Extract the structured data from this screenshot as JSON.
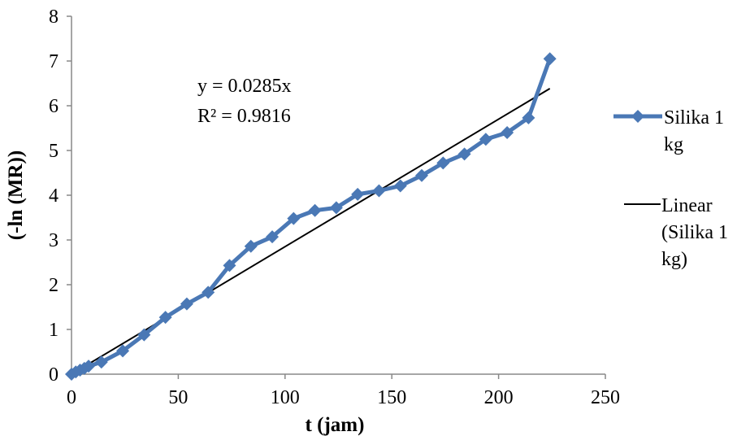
{
  "chart_data": {
    "type": "line",
    "xlabel": "t (jam)",
    "ylabel": "(-ln (MR))",
    "xlim": [
      0,
      250
    ],
    "ylim": [
      0,
      8
    ],
    "xticks": [
      "0",
      "50",
      "100",
      "150",
      "200",
      "250"
    ],
    "yticks": [
      "0",
      "1",
      "2",
      "3",
      "4",
      "5",
      "6",
      "7",
      "8"
    ],
    "grid": false,
    "legend_position": "right",
    "series": [
      {
        "name": "Silika 1 kg",
        "legend_lines": [
          "Silika 1",
          "kg"
        ],
        "color": "#4a78b5",
        "marker": "diamond",
        "x": [
          0,
          2,
          4,
          6,
          8,
          14,
          24,
          34,
          44,
          54,
          64,
          74,
          84,
          94,
          104,
          114,
          124,
          134,
          144,
          154,
          164,
          174,
          184,
          194,
          204,
          214,
          224
        ],
        "y": [
          0,
          0.05,
          0.09,
          0.13,
          0.18,
          0.27,
          0.52,
          0.88,
          1.27,
          1.57,
          1.83,
          2.43,
          2.86,
          3.07,
          3.48,
          3.66,
          3.72,
          4.02,
          4.1,
          4.21,
          4.44,
          4.72,
          4.92,
          5.25,
          5.4,
          5.73,
          7.05
        ]
      },
      {
        "name": "Linear (Silika 1 kg)",
        "legend_lines": [
          "Linear",
          "(Silika 1",
          "kg)"
        ],
        "color": "#000000",
        "type": "trendline",
        "slope": 0.0285,
        "x_range": [
          0,
          224
        ]
      }
    ],
    "annotations": {
      "equation": "y = 0.0285x",
      "r_squared": "R² = 0.9816"
    }
  }
}
